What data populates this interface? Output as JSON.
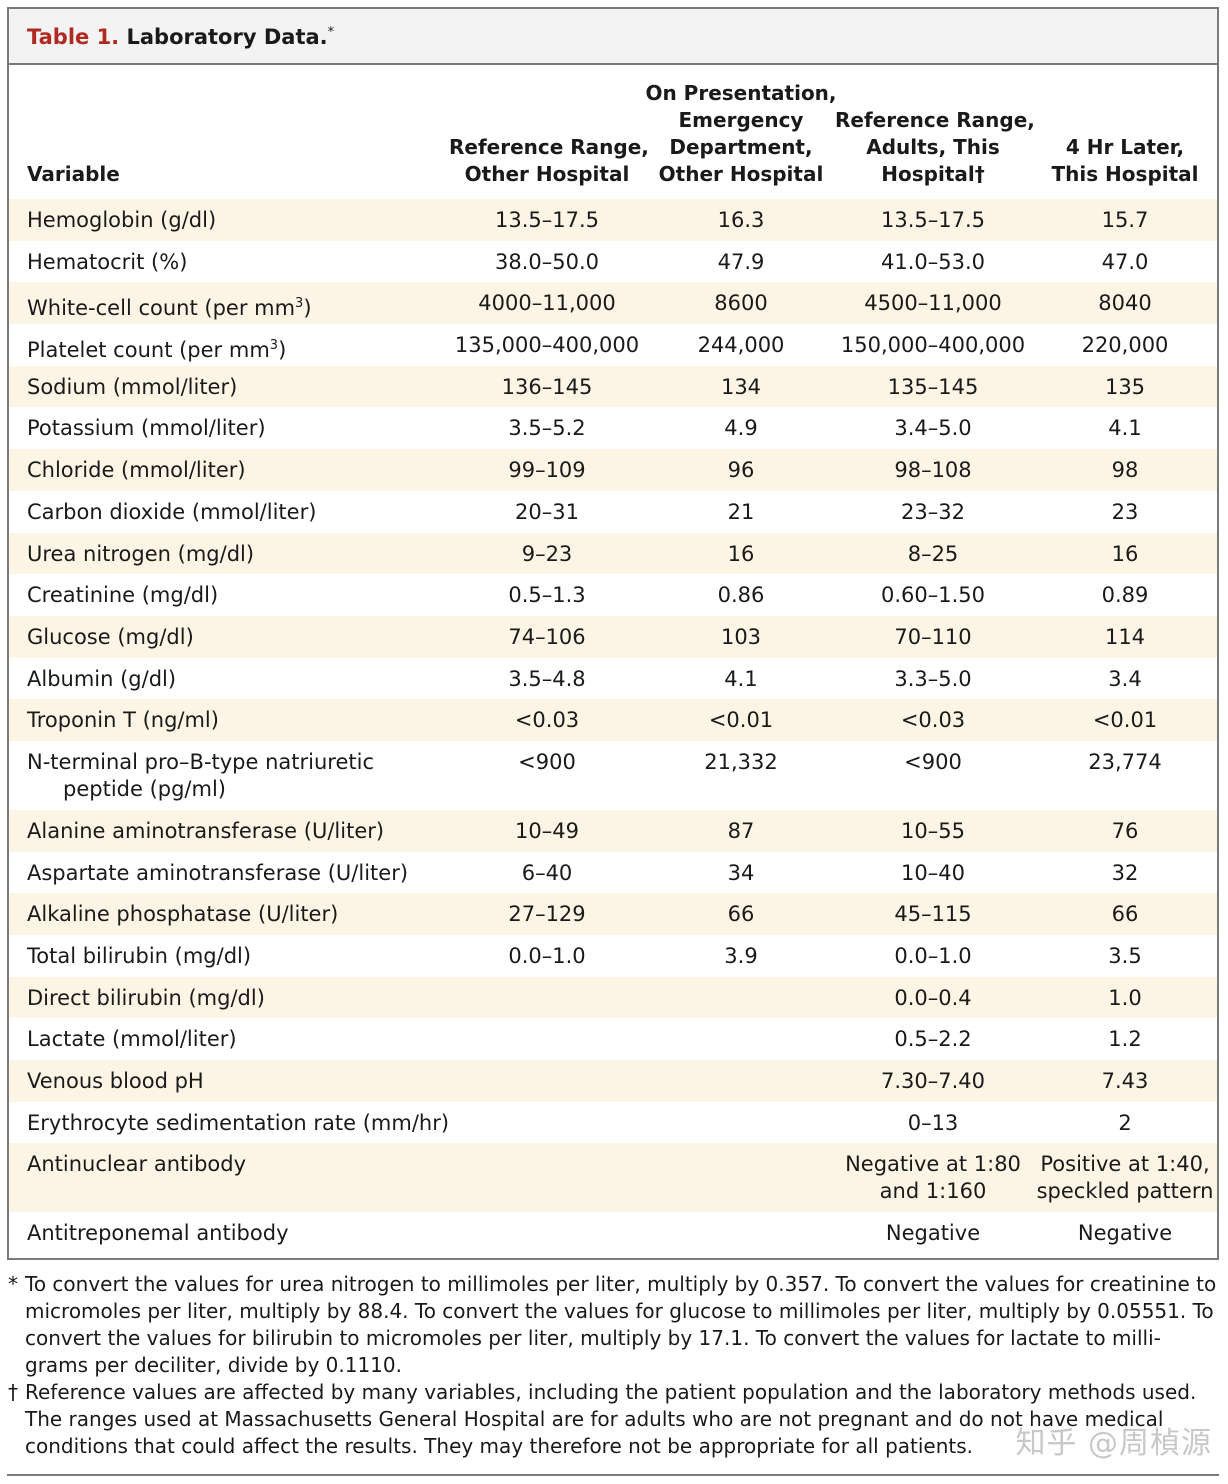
{
  "table": {
    "title_num": "Table 1.",
    "title_rest": "Laboratory Data.",
    "title_mark": "*",
    "headers": [
      "Variable",
      "Reference Range,\nOther Hospital",
      "On Presentation,\nEmergency\nDepartment,\nOther Hospital",
      "Reference Range,\nAdults, This\nHospital†",
      "4 Hr Later,\nThis Hospital"
    ],
    "rows": [
      {
        "variable": "Hemoglobin (g/dl)",
        "ref_other": "13.5–17.5",
        "presentation": "16.3",
        "ref_this": "13.5–17.5",
        "later": "15.7"
      },
      {
        "variable": "Hematocrit (%)",
        "ref_other": "38.0–50.0",
        "presentation": "47.9",
        "ref_this": "41.0–53.0",
        "later": "47.0"
      },
      {
        "variable": "White-cell count (per mm",
        "variable_sup": "3",
        "variable_tail": ")",
        "ref_other": "4000–11,000",
        "presentation": "8600",
        "ref_this": "4500–11,000",
        "later": "8040"
      },
      {
        "variable": "Platelet count (per mm",
        "variable_sup": "3",
        "variable_tail": ")",
        "ref_other": "135,000–400,000",
        "presentation": "244,000",
        "ref_this": "150,000–400,000",
        "later": "220,000"
      },
      {
        "variable": "Sodium (mmol/liter)",
        "ref_other": "136–145",
        "presentation": "134",
        "ref_this": "135–145",
        "later": "135"
      },
      {
        "variable": "Potassium (mmol/liter)",
        "ref_other": "3.5–5.2",
        "presentation": "4.9",
        "ref_this": "3.4–5.0",
        "later": "4.1"
      },
      {
        "variable": "Chloride (mmol/liter)",
        "ref_other": "99–109",
        "presentation": "96",
        "ref_this": "98–108",
        "later": "98"
      },
      {
        "variable": "Carbon dioxide (mmol/liter)",
        "ref_other": "20–31",
        "presentation": "21",
        "ref_this": "23–32",
        "later": "23"
      },
      {
        "variable": "Urea nitrogen (mg/dl)",
        "ref_other": "9–23",
        "presentation": "16",
        "ref_this": "8–25",
        "later": "16"
      },
      {
        "variable": "Creatinine (mg/dl)",
        "ref_other": "0.5–1.3",
        "presentation": "0.86",
        "ref_this": "0.60–1.50",
        "later": "0.89"
      },
      {
        "variable": "Glucose (mg/dl)",
        "ref_other": "74–106",
        "presentation": "103",
        "ref_this": "70–110",
        "later": "114"
      },
      {
        "variable": "Albumin (g/dl)",
        "ref_other": "3.5–4.8",
        "presentation": "4.1",
        "ref_this": "3.3–5.0",
        "later": "3.4"
      },
      {
        "variable": "Troponin T (ng/ml)",
        "ref_other": "<0.03",
        "presentation": "<0.01",
        "ref_this": "<0.03",
        "later": "<0.01"
      },
      {
        "variable": "N-terminal pro–B-type natriuretic",
        "variable_line2": "peptide (pg/ml)",
        "ref_other": "<900",
        "presentation": "21,332",
        "ref_this": "<900",
        "later": "23,774"
      },
      {
        "variable": "Alanine aminotransferase (U/liter)",
        "ref_other": "10–49",
        "presentation": "87",
        "ref_this": "10–55",
        "later": "76"
      },
      {
        "variable": "Aspartate aminotransferase (U/liter)",
        "ref_other": "6–40",
        "presentation": "34",
        "ref_this": "10–40",
        "later": "32"
      },
      {
        "variable": "Alkaline phosphatase (U/liter)",
        "ref_other": "27–129",
        "presentation": "66",
        "ref_this": "45–115",
        "later": "66"
      },
      {
        "variable": "Total bilirubin (mg/dl)",
        "ref_other": "0.0–1.0",
        "presentation": "3.9",
        "ref_this": "0.0–1.0",
        "later": "3.5"
      },
      {
        "variable": "Direct bilirubin (mg/dl)",
        "ref_other": "",
        "presentation": "",
        "ref_this": "0.0–0.4",
        "later": "1.0"
      },
      {
        "variable": "Lactate (mmol/liter)",
        "ref_other": "",
        "presentation": "",
        "ref_this": "0.5–2.2",
        "later": "1.2"
      },
      {
        "variable": "Venous blood pH",
        "ref_other": "",
        "presentation": "",
        "ref_this": "7.30–7.40",
        "later": "7.43"
      },
      {
        "variable": "Erythrocyte sedimentation rate (mm/hr)",
        "ref_other": "",
        "presentation": "",
        "ref_this": "0–13",
        "later": "2"
      },
      {
        "variable": "Antinuclear antibody",
        "ref_other": "",
        "presentation": "",
        "ref_this": "Negative at 1:80\nand 1:160",
        "later": "Positive at 1:40,\nspeckled pattern"
      },
      {
        "variable": "Antitreponemal antibody",
        "ref_other": "",
        "presentation": "",
        "ref_this": "Negative",
        "later": "Negative"
      }
    ]
  },
  "footnotes": [
    {
      "mark": "*",
      "text": "To convert the values for urea nitrogen to millimoles per liter, multiply by 0.357. To convert the values for creatinine to micromoles per liter, multiply by 88.4. To convert the values for glucose to millimoles per liter, multiply by 0.05551. To convert the values for bilirubin to micromoles per liter, multiply by 17.1. To convert the values for lactate to milli-grams per deciliter, divide by 0.1110."
    },
    {
      "mark": "†",
      "text": "Reference values are affected by many variables, including the patient population and the laboratory methods used. The ranges used at Massachusetts General Hospital are for adults who are not pregnant and do not have medical conditions that could affect the results. They may therefore not be appropriate for all patients."
    }
  ],
  "watermark": "知乎 @周楨源",
  "colors": {
    "title_accent": "#b02a22",
    "row_shade": "#fcf5e6",
    "border": "#7a7a7a"
  }
}
